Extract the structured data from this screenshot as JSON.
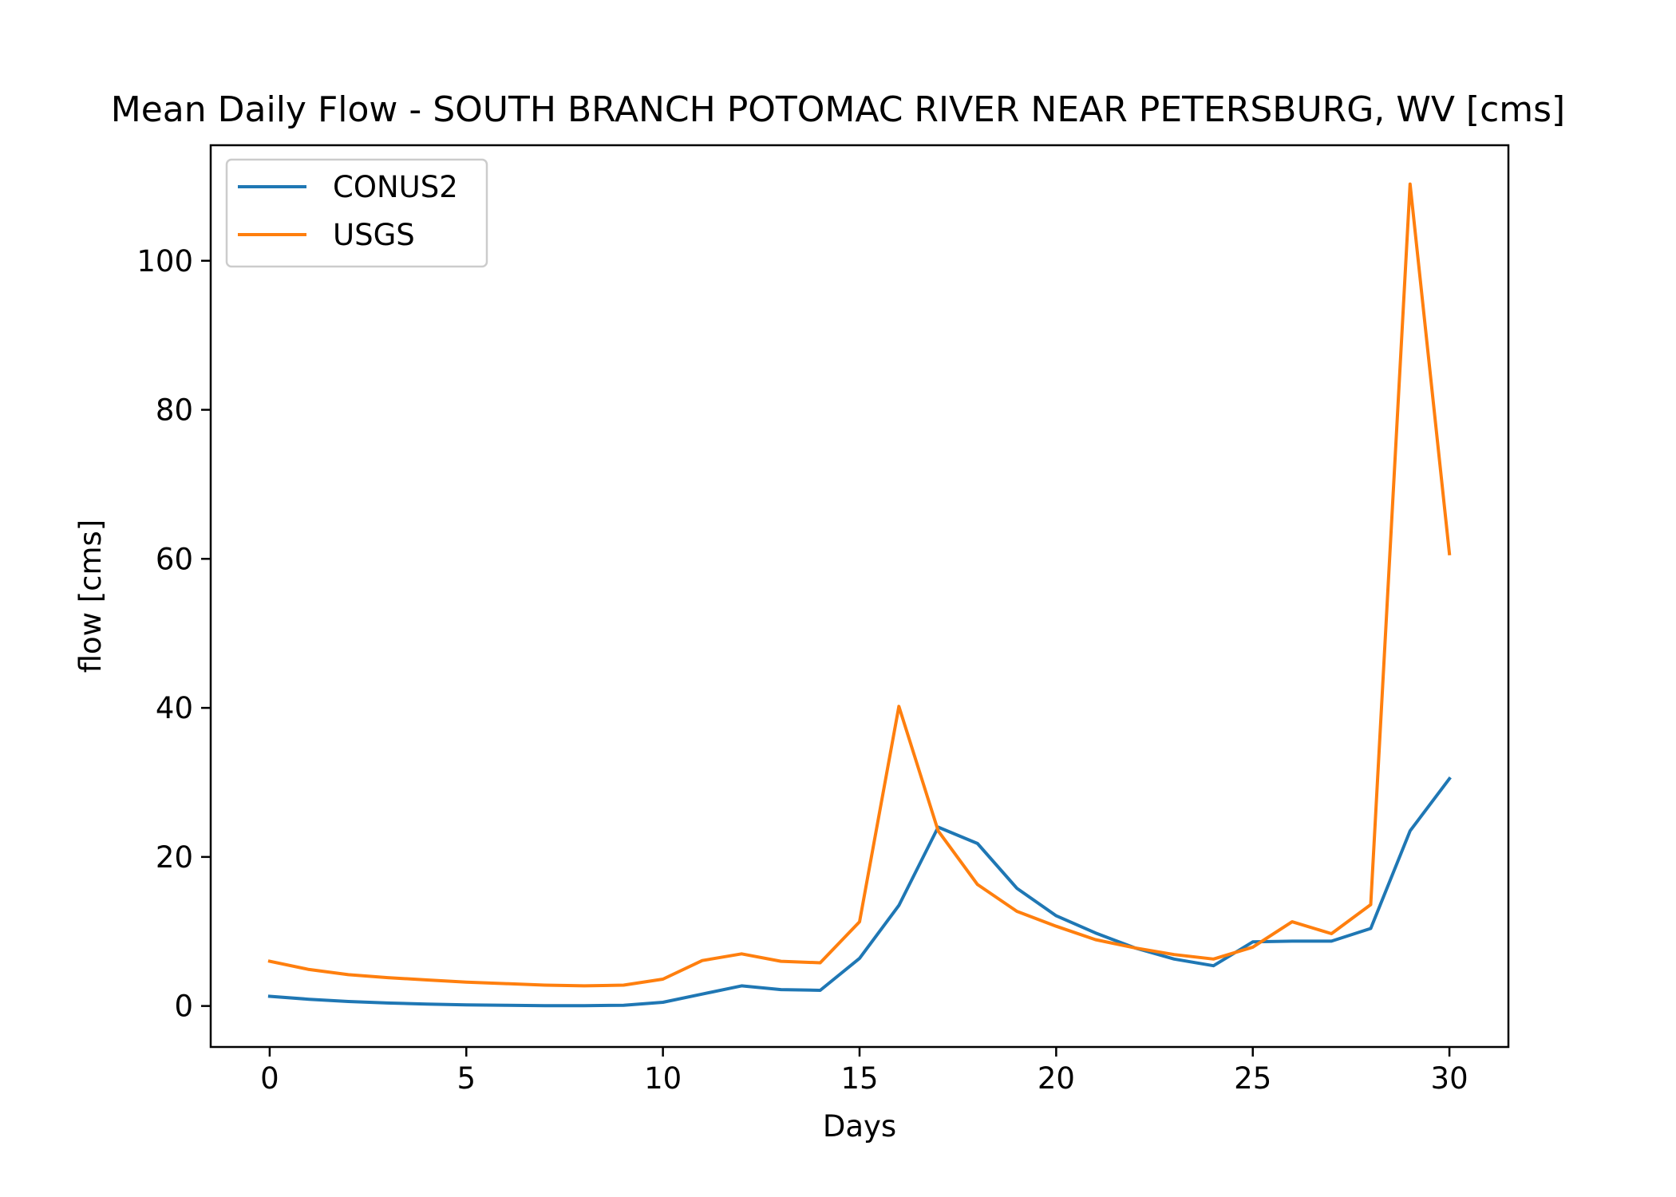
{
  "chart_data": {
    "type": "line",
    "title": "Mean Daily Flow - SOUTH BRANCH POTOMAC RIVER NEAR PETERSBURG, WV [cms]",
    "xlabel": "Days",
    "ylabel": "flow [cms]",
    "xlim": [
      -1.5,
      31.5
    ],
    "ylim": [
      -5.5,
      115.5
    ],
    "xticks": [
      0,
      5,
      10,
      15,
      20,
      25,
      30
    ],
    "yticks": [
      0,
      20,
      40,
      60,
      80,
      100
    ],
    "grid": false,
    "legend_position": "top-left",
    "x": [
      0,
      1,
      2,
      3,
      4,
      5,
      6,
      7,
      8,
      9,
      10,
      11,
      12,
      13,
      14,
      15,
      16,
      17,
      18,
      19,
      20,
      21,
      22,
      23,
      24,
      25,
      26,
      27,
      28,
      29,
      30
    ],
    "series": [
      {
        "name": "CONUS2",
        "color": "#1f77b4",
        "values": [
          1.3,
          0.9,
          0.6,
          0.4,
          0.25,
          0.15,
          0.1,
          0.05,
          0.05,
          0.1,
          0.5,
          1.6,
          2.7,
          2.2,
          2.1,
          6.4,
          13.5,
          24.0,
          21.8,
          15.8,
          12.1,
          9.8,
          7.8,
          6.3,
          5.4,
          8.6,
          8.7,
          8.7,
          10.4,
          23.5,
          30.5
        ]
      },
      {
        "name": "USGS",
        "color": "#ff7f0e",
        "values": [
          6.0,
          4.9,
          4.2,
          3.8,
          3.5,
          3.2,
          3.0,
          2.8,
          2.7,
          2.8,
          3.6,
          6.1,
          7.0,
          6.0,
          5.8,
          11.3,
          40.2,
          23.5,
          16.3,
          12.7,
          10.7,
          8.9,
          7.8,
          6.9,
          6.3,
          7.9,
          11.3,
          9.7,
          13.6,
          110.3,
          60.7
        ]
      }
    ]
  }
}
